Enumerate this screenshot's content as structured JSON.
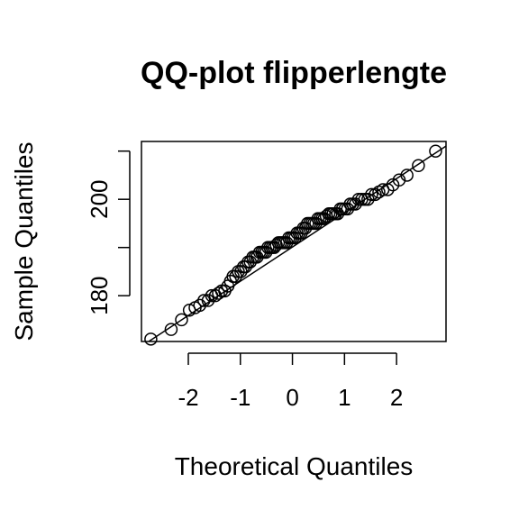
{
  "chart_data": {
    "type": "scatter",
    "title": "QQ-plot flipperlengte",
    "xlabel": "Theoretical Quantiles",
    "ylabel": "Sample Quantiles",
    "xlim": [
      -2.9,
      2.95
    ],
    "ylim": [
      170.5,
      212
    ],
    "x_ticks": [
      -2,
      -1,
      0,
      1,
      2
    ],
    "x_tick_labels": [
      "-2",
      "-1",
      "0",
      "1",
      "2"
    ],
    "y_ticks": [
      180,
      190,
      200,
      210
    ],
    "y_tick_labels": [
      "180",
      "",
      "200",
      ""
    ],
    "grid": false,
    "reference_line": {
      "intercept": 190.1,
      "slope": 7.1
    },
    "points": {
      "x": [
        -2.72,
        -2.33,
        -2.13,
        -1.98,
        -1.87,
        -1.78,
        -1.7,
        -1.62,
        -1.55,
        -1.48,
        -1.42,
        -1.36,
        -1.3,
        -1.24,
        -1.19,
        -1.14,
        -1.09,
        -1.04,
        -0.99,
        -0.94,
        -0.9,
        -0.85,
        -0.81,
        -0.76,
        -0.72,
        -0.68,
        -0.63,
        -0.59,
        -0.55,
        -0.51,
        -0.47,
        -0.43,
        -0.39,
        -0.35,
        -0.31,
        -0.27,
        -0.23,
        -0.19,
        -0.15,
        -0.11,
        -0.07,
        -0.03,
        0.01,
        0.05,
        0.09,
        0.13,
        0.17,
        0.21,
        0.25,
        0.29,
        0.33,
        0.37,
        0.41,
        0.45,
        0.49,
        0.53,
        0.57,
        0.61,
        0.65,
        0.7,
        0.74,
        0.78,
        0.83,
        0.87,
        0.92,
        0.96,
        1.01,
        1.06,
        1.11,
        1.16,
        1.21,
        1.27,
        1.33,
        1.39,
        1.45,
        1.52,
        1.59,
        1.66,
        1.74,
        1.83,
        1.93,
        2.05,
        2.2,
        2.42,
        2.75
      ],
      "y": [
        171,
        173,
        175,
        177,
        177.5,
        178,
        179,
        179,
        180,
        180,
        180.5,
        181,
        181,
        182,
        183,
        184,
        184,
        185,
        185,
        186,
        186,
        187,
        187,
        188,
        188,
        188,
        189,
        189,
        189,
        189,
        190,
        190,
        190,
        190,
        190.5,
        191,
        191,
        191,
        191,
        191,
        192,
        192,
        192,
        192,
        193,
        193,
        193,
        194,
        194,
        195,
        195,
        195,
        195,
        195,
        196,
        196,
        196,
        196,
        196.5,
        197,
        197,
        197,
        197,
        197,
        198,
        198,
        198,
        198,
        199,
        199,
        199,
        200,
        200,
        200,
        200,
        201,
        201,
        201.5,
        202,
        202,
        203,
        204,
        205,
        207,
        210
      ]
    }
  }
}
